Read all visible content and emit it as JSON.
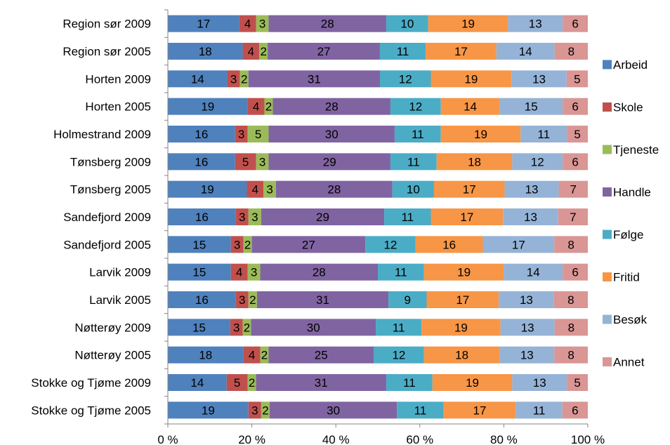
{
  "chart_data": {
    "type": "bar",
    "orientation": "horizontal",
    "stacked": "percent",
    "categories": [
      "Region sør 2009",
      "Region sør 2005",
      "Horten 2009",
      "Horten 2005",
      "Holmestrand 2009",
      "Tønsberg 2009",
      "Tønsberg 2005",
      "Sandefjord 2009",
      "Sandefjord 2005",
      "Larvik 2009",
      "Larvik 2005",
      "Nøtterøy 2009",
      "Nøtterøy 2005",
      "Stokke og Tjøme 2009",
      "Stokke og Tjøme 2005"
    ],
    "series": [
      {
        "name": "Arbeid",
        "color": "#4F81BD",
        "values": [
          17,
          18,
          14,
          19,
          16,
          16,
          19,
          16,
          15,
          15,
          16,
          15,
          18,
          14,
          19
        ]
      },
      {
        "name": "Skole",
        "color": "#C0504D",
        "values": [
          4,
          4,
          3,
          4,
          3,
          5,
          4,
          3,
          3,
          4,
          3,
          3,
          4,
          5,
          3
        ]
      },
      {
        "name": "Tjeneste",
        "color": "#9BBB59",
        "values": [
          3,
          2,
          2,
          2,
          5,
          3,
          3,
          3,
          2,
          3,
          2,
          2,
          2,
          2,
          2
        ]
      },
      {
        "name": "Handle",
        "color": "#8064A2",
        "values": [
          28,
          27,
          31,
          28,
          30,
          29,
          28,
          29,
          27,
          28,
          31,
          30,
          25,
          31,
          30
        ]
      },
      {
        "name": "Følge",
        "color": "#4BACC6",
        "values": [
          10,
          11,
          12,
          12,
          11,
          11,
          10,
          11,
          12,
          11,
          9,
          11,
          12,
          11,
          11
        ]
      },
      {
        "name": "Fritid",
        "color": "#F79646",
        "values": [
          19,
          17,
          19,
          14,
          19,
          18,
          17,
          17,
          16,
          19,
          17,
          19,
          18,
          19,
          17
        ]
      },
      {
        "name": "Besøk",
        "color": "#95B3D7",
        "values": [
          13,
          14,
          13,
          15,
          11,
          12,
          13,
          13,
          17,
          14,
          13,
          13,
          13,
          13,
          11
        ]
      },
      {
        "name": "Annet",
        "color": "#D99694",
        "values": [
          6,
          8,
          5,
          6,
          5,
          6,
          7,
          7,
          8,
          6,
          8,
          8,
          8,
          5,
          6
        ]
      }
    ],
    "x_ticks": [
      "0 %",
      "20 %",
      "40 %",
      "60 %",
      "80 %",
      "100 %"
    ],
    "xlim": [
      0,
      100
    ],
    "grid": false,
    "legend_position": "right"
  }
}
